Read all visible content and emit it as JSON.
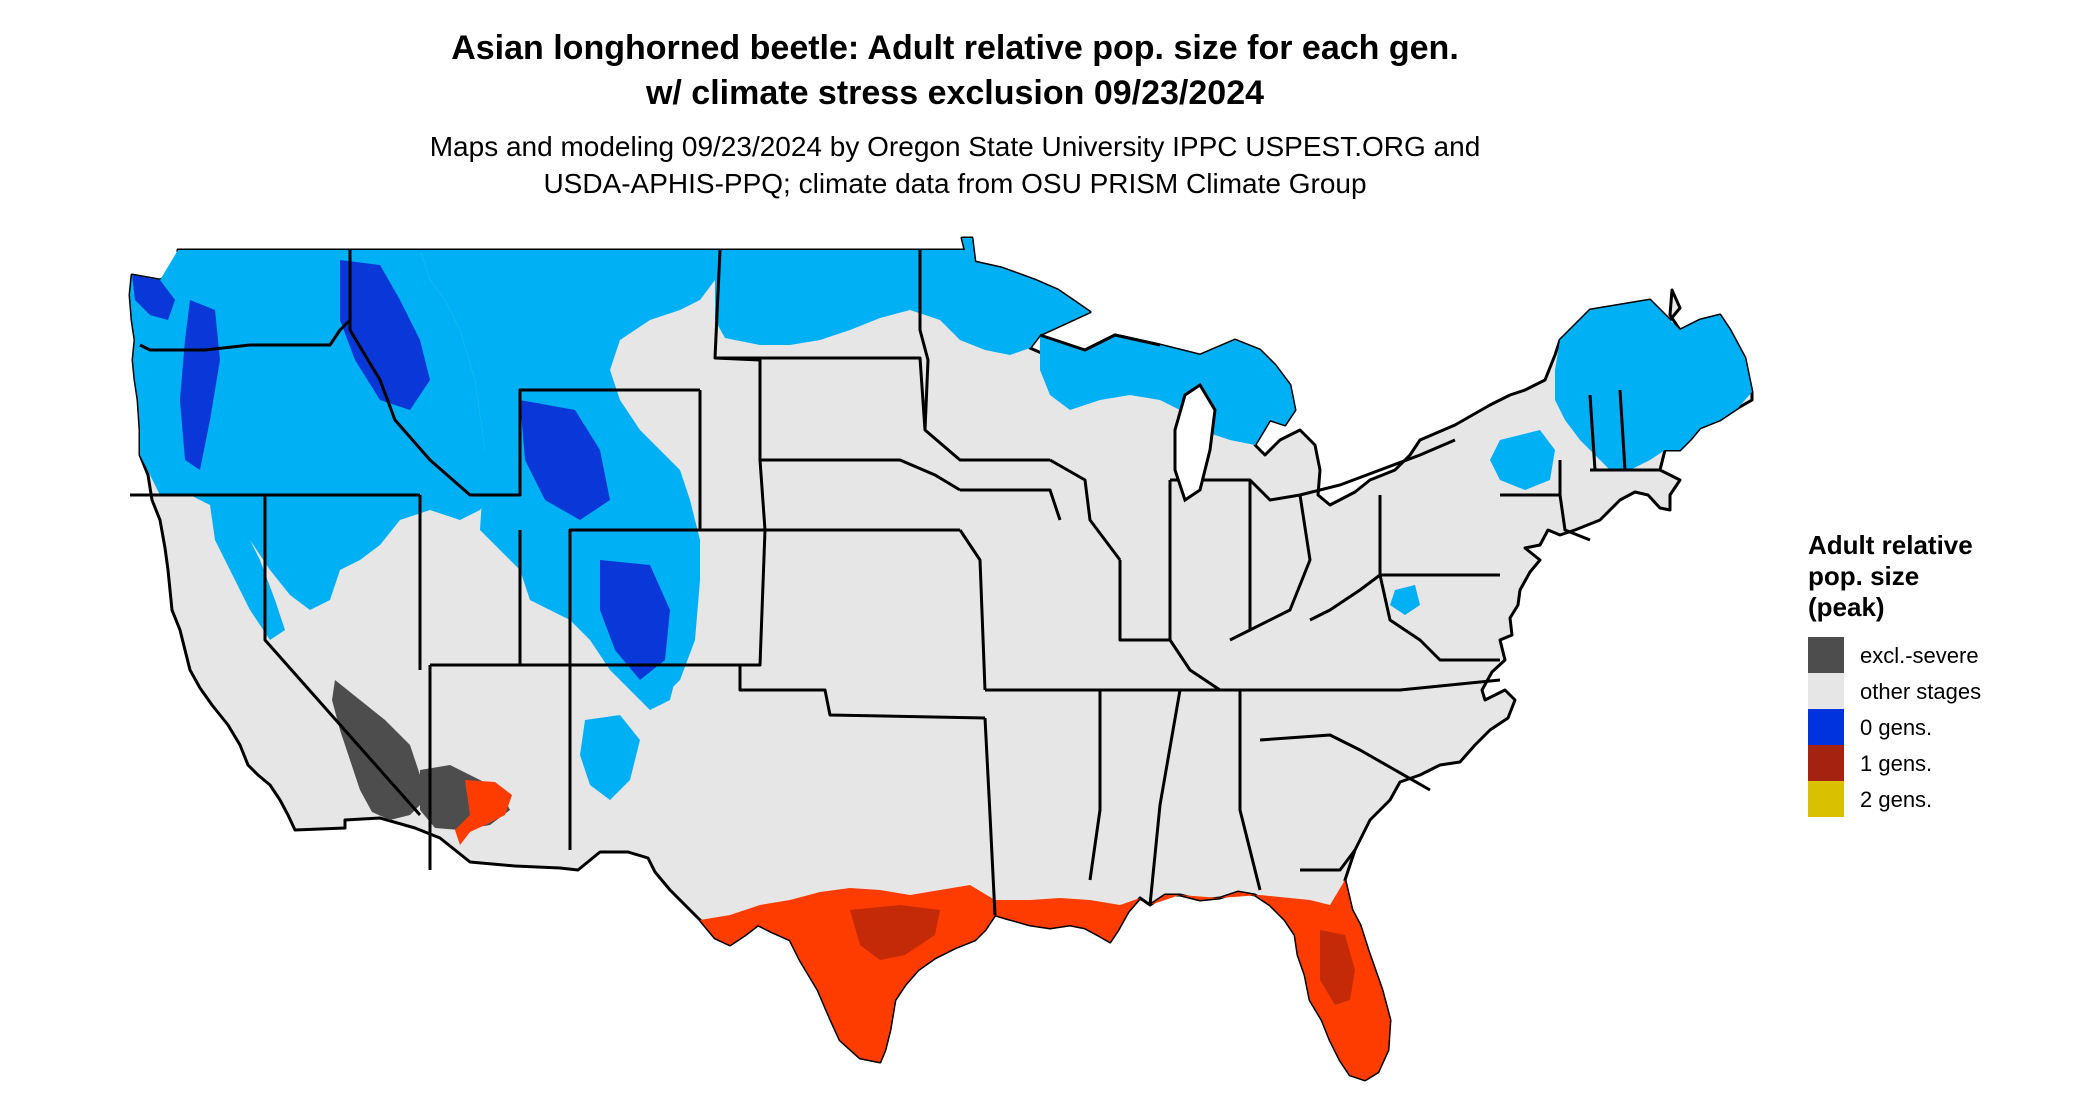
{
  "header": {
    "title_line1": "Asian longhorned beetle: Adult relative pop. size for each gen.",
    "title_line2": "w/ climate stress exclusion 09/23/2024",
    "subtitle_line1": "Maps and modeling 09/23/2024 by Oregon State University IPPC USPEST.ORG and",
    "subtitle_line2": "USDA-APHIS-PPQ; climate data from OSU PRISM Climate Group"
  },
  "legend": {
    "title_line1": "Adult relative",
    "title_line2": "pop. size",
    "title_line3": "(peak)",
    "items": [
      {
        "label": "excl.-severe",
        "color": "#4d4d4d"
      },
      {
        "label": "other stages",
        "color": "#e6e6e6"
      },
      {
        "label": "0 gens.",
        "color": "#0033dd"
      },
      {
        "label": "1 gens.",
        "color": "#a52210"
      },
      {
        "label": "2 gens.",
        "color": "#d9c000"
      }
    ]
  },
  "map_colors": {
    "land": "#e6e6e6",
    "light_blue": "#00b0f5",
    "dark_blue": "#0a38d8",
    "orange_red": "#ff3c00",
    "dark_red": "#c42a08",
    "dark_gray": "#4d4d4d",
    "border": "#000000"
  }
}
